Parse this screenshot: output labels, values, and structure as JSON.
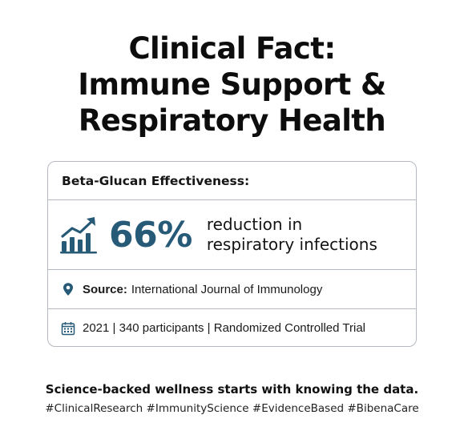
{
  "title": {
    "line1": "Clinical Fact:",
    "line2": "Immune Support &",
    "line3": "Respiratory Health"
  },
  "card": {
    "header": "Beta-Glucan Effectiveness:",
    "stat": {
      "value": "66%",
      "desc_line1": "reduction in",
      "desc_line2": "respiratory infections",
      "icon": "growth-chart-icon"
    },
    "source": {
      "icon": "location-pin-icon",
      "label": "Source:",
      "text": "International Journal of Immunology"
    },
    "meta": {
      "icon": "calendar-icon",
      "text": "2021 | 340 participants | Randomized Controlled Trial"
    }
  },
  "footer": {
    "tagline": "Science-backed wellness starts with knowing the data.",
    "hashtags": "#ClinicalResearch #ImmunityScience #EvidenceBased #BibenaCare"
  },
  "colors": {
    "accent": "#265a77",
    "border": "#b4bac0",
    "text": "#111111"
  }
}
